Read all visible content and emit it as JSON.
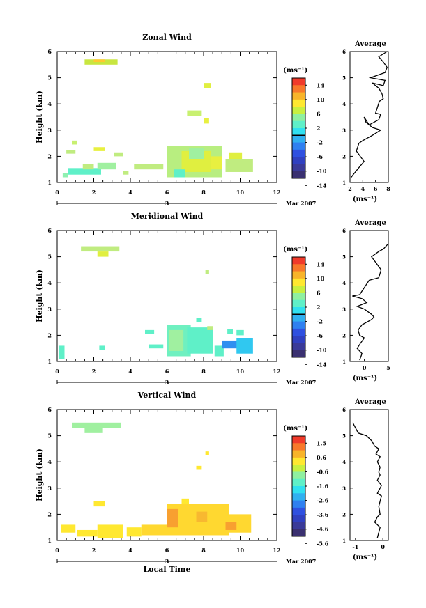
{
  "shared": {
    "y_label": "Height (km)",
    "x_label": "Local Time",
    "date_label": "Mar 2007",
    "day_label": "3",
    "cb_unit": "(ms⁻¹)",
    "avg_title": "Average",
    "avg_unit": "(ms⁻¹)"
  },
  "chart_data": [
    {
      "type": "heatmap",
      "title": "Zonal Wind",
      "xlim": [
        0,
        12
      ],
      "xticks": [
        0,
        2,
        4,
        6,
        8,
        10,
        12
      ],
      "ylim": [
        1,
        6
      ],
      "yticks": [
        1,
        2,
        3,
        4,
        5,
        6
      ],
      "colorbar": {
        "ticks": [
          "14",
          "10",
          "6",
          "2",
          "-2",
          "-6",
          "-10",
          "-14"
        ],
        "zero_line_after": 4
      },
      "cells": [
        {
          "x0": 1.5,
          "x1": 3.3,
          "y0": 5.5,
          "y1": 5.7,
          "c": "#c8e640"
        },
        {
          "x0": 2.0,
          "x1": 2.6,
          "y0": 5.6,
          "y1": 5.7,
          "c": "#ffc830"
        },
        {
          "x0": 8.0,
          "x1": 8.4,
          "y0": 4.6,
          "y1": 4.8,
          "c": "#e0ef40"
        },
        {
          "x0": 7.1,
          "x1": 7.9,
          "y0": 3.55,
          "y1": 3.75,
          "c": "#c8f070"
        },
        {
          "x0": 8.0,
          "x1": 8.3,
          "y0": 3.25,
          "y1": 3.45,
          "c": "#e8f040"
        },
        {
          "x0": 0.8,
          "x1": 1.1,
          "y0": 2.45,
          "y1": 2.6,
          "c": "#c8f070"
        },
        {
          "x0": 2.0,
          "x1": 2.6,
          "y0": 2.2,
          "y1": 2.35,
          "c": "#e8f040"
        },
        {
          "x0": 0.5,
          "x1": 1.0,
          "y0": 2.1,
          "y1": 2.25,
          "c": "#c0ec80"
        },
        {
          "x0": 3.1,
          "x1": 3.6,
          "y0": 2.0,
          "y1": 2.15,
          "c": "#c0ec80"
        },
        {
          "x0": 0.6,
          "x1": 2.4,
          "y0": 1.3,
          "y1": 1.55,
          "c": "#5ff0c8"
        },
        {
          "x0": 2.2,
          "x1": 3.2,
          "y0": 1.5,
          "y1": 1.75,
          "c": "#a0f0a0"
        },
        {
          "x0": 1.4,
          "x1": 2.0,
          "y0": 1.5,
          "y1": 1.7,
          "c": "#c0ec80"
        },
        {
          "x0": 0.3,
          "x1": 0.6,
          "y0": 1.2,
          "y1": 1.35,
          "c": "#8ff0b0"
        },
        {
          "x0": 3.6,
          "x1": 3.9,
          "y0": 1.3,
          "y1": 1.45,
          "c": "#c0ec80"
        },
        {
          "x0": 4.2,
          "x1": 5.8,
          "y0": 1.5,
          "y1": 1.7,
          "c": "#c0ec80"
        },
        {
          "x0": 6.0,
          "x1": 9.0,
          "y0": 1.2,
          "y1": 2.4,
          "c": "#b8ee80"
        },
        {
          "x0": 6.8,
          "x1": 8.4,
          "y0": 1.4,
          "y1": 2.2,
          "c": "#e0ef40"
        },
        {
          "x0": 7.2,
          "x1": 8.0,
          "y0": 1.9,
          "y1": 2.3,
          "c": "#a0f0a0"
        },
        {
          "x0": 6.4,
          "x1": 7.0,
          "y0": 1.2,
          "y1": 1.5,
          "c": "#5ff0c8"
        },
        {
          "x0": 9.2,
          "x1": 10.7,
          "y0": 1.4,
          "y1": 1.9,
          "c": "#c0ec80"
        },
        {
          "x0": 9.4,
          "x1": 10.1,
          "y0": 1.9,
          "y1": 2.15,
          "c": "#e0ef40"
        },
        {
          "x0": 8.4,
          "x1": 9.0,
          "y0": 1.5,
          "y1": 2.0,
          "c": "#e8f040"
        }
      ],
      "avg": {
        "xlim": [
          2,
          8
        ],
        "xticks": [
          "2",
          "4",
          "6",
          "8"
        ],
        "x": [
          2.2,
          2.5,
          3.0,
          3.5,
          4.2,
          3.6,
          3.0,
          3.4,
          4.0,
          5.5,
          6.8,
          5.5,
          4.5,
          4.2,
          5.0,
          6.5,
          6.8,
          6.0,
          6.6,
          7.2,
          7.0,
          6.5,
          5.5,
          7.2,
          7.5,
          5.2,
          7.5,
          7.8,
          7.2,
          6.5,
          7.8
        ],
        "y": [
          1.2,
          1.3,
          1.45,
          1.6,
          1.8,
          2.0,
          2.2,
          2.5,
          2.6,
          2.8,
          3.0,
          3.1,
          3.3,
          3.5,
          3.2,
          3.4,
          3.6,
          3.65,
          4.1,
          4.2,
          4.4,
          4.6,
          4.8,
          4.7,
          4.9,
          5.0,
          5.2,
          5.4,
          5.6,
          5.8,
          6.0
        ]
      }
    },
    {
      "type": "heatmap",
      "title": "Meridional Wind",
      "xlim": [
        0,
        12
      ],
      "xticks": [
        0,
        2,
        4,
        6,
        8,
        10,
        12
      ],
      "ylim": [
        1,
        6
      ],
      "yticks": [
        1,
        2,
        3,
        4,
        5,
        6
      ],
      "colorbar": {
        "ticks": [
          "14",
          "10",
          "6",
          "2",
          "-2",
          "-6",
          "-10",
          "-14"
        ],
        "zero_line_after": 4
      },
      "cells": [
        {
          "x0": 1.3,
          "x1": 3.4,
          "y0": 5.2,
          "y1": 5.4,
          "c": "#c0ec80"
        },
        {
          "x0": 2.2,
          "x1": 2.8,
          "y0": 5.0,
          "y1": 5.2,
          "c": "#e0ef40"
        },
        {
          "x0": 8.1,
          "x1": 8.3,
          "y0": 4.35,
          "y1": 4.5,
          "c": "#c0ec80"
        },
        {
          "x0": 0.1,
          "x1": 0.4,
          "y0": 1.1,
          "y1": 1.6,
          "c": "#5ff0c8"
        },
        {
          "x0": 2.3,
          "x1": 2.6,
          "y0": 1.45,
          "y1": 1.6,
          "c": "#5ff0c8"
        },
        {
          "x0": 4.8,
          "x1": 5.3,
          "y0": 2.05,
          "y1": 2.2,
          "c": "#5ff0c8"
        },
        {
          "x0": 5.0,
          "x1": 5.8,
          "y0": 1.5,
          "y1": 1.65,
          "c": "#5ff0c8"
        },
        {
          "x0": 6.0,
          "x1": 7.3,
          "y0": 1.2,
          "y1": 2.4,
          "c": "#6ff0c0"
        },
        {
          "x0": 6.1,
          "x1": 6.9,
          "y0": 1.4,
          "y1": 2.2,
          "c": "#a0f0a0"
        },
        {
          "x0": 7.1,
          "x1": 8.5,
          "y0": 1.3,
          "y1": 2.3,
          "c": "#5ff0c8"
        },
        {
          "x0": 7.6,
          "x1": 7.9,
          "y0": 2.5,
          "y1": 2.65,
          "c": "#5ff0c8"
        },
        {
          "x0": 8.2,
          "x1": 8.5,
          "y0": 2.2,
          "y1": 2.35,
          "c": "#c0ec80"
        },
        {
          "x0": 8.6,
          "x1": 9.1,
          "y0": 1.2,
          "y1": 1.6,
          "c": "#5ff0c8"
        },
        {
          "x0": 9.0,
          "x1": 10.0,
          "y0": 1.5,
          "y1": 1.8,
          "c": "#2f8ff0"
        },
        {
          "x0": 9.8,
          "x1": 10.7,
          "y0": 1.3,
          "y1": 1.9,
          "c": "#30c8f0"
        },
        {
          "x0": 9.3,
          "x1": 9.6,
          "y0": 2.05,
          "y1": 2.25,
          "c": "#5ff0c8"
        },
        {
          "x0": 9.8,
          "x1": 10.2,
          "y0": 2.0,
          "y1": 2.2,
          "c": "#5ff0c8"
        }
      ],
      "avg": {
        "xlim": [
          -3,
          5
        ],
        "xticks": [
          "0",
          "5"
        ],
        "x": [
          -1.0,
          -0.5,
          -1.5,
          -0.8,
          0.0,
          -1.0,
          -1.3,
          -0.5,
          0.5,
          1.5,
          2.0,
          1.5,
          0.0,
          -1.5,
          0.5,
          -0.5,
          -2.5,
          -1.0,
          1.0,
          3.0,
          3.5,
          1.5,
          3.0,
          4.0,
          5.0
        ],
        "y": [
          1.05,
          1.3,
          1.5,
          1.7,
          1.9,
          2.0,
          2.2,
          2.4,
          2.5,
          2.6,
          2.7,
          2.8,
          3.0,
          3.1,
          3.25,
          3.4,
          3.5,
          3.55,
          4.1,
          4.2,
          4.5,
          5.0,
          5.2,
          5.3,
          5.5
        ]
      }
    },
    {
      "type": "heatmap",
      "title": "Vertical Wind",
      "xlim": [
        0,
        12
      ],
      "xticks": [
        0,
        2,
        4,
        6,
        8,
        10,
        12
      ],
      "ylim": [
        1,
        6
      ],
      "yticks": [
        1,
        2,
        3,
        4,
        5,
        6
      ],
      "colorbar": {
        "ticks": [
          "1.5",
          "0.6",
          "-0.6",
          "-1.6",
          "-2.6",
          "-3.6",
          "-4.6",
          "-5.6"
        ],
        "zero_line_after": -1
      },
      "cells": [
        {
          "x0": 0.8,
          "x1": 3.5,
          "y0": 5.3,
          "y1": 5.5,
          "c": "#a0f0a0"
        },
        {
          "x0": 1.5,
          "x1": 2.5,
          "y0": 5.1,
          "y1": 5.3,
          "c": "#a0f0a0"
        },
        {
          "x0": 8.1,
          "x1": 8.3,
          "y0": 4.25,
          "y1": 4.4,
          "c": "#ffe830"
        },
        {
          "x0": 7.6,
          "x1": 7.9,
          "y0": 3.7,
          "y1": 3.85,
          "c": "#ffe830"
        },
        {
          "x0": 2.0,
          "x1": 2.6,
          "y0": 2.3,
          "y1": 2.5,
          "c": "#ffe830"
        },
        {
          "x0": 0.2,
          "x1": 1.0,
          "y0": 1.3,
          "y1": 1.6,
          "c": "#ffe830"
        },
        {
          "x0": 1.1,
          "x1": 2.2,
          "y0": 1.15,
          "y1": 1.4,
          "c": "#ffe830"
        },
        {
          "x0": 2.2,
          "x1": 3.6,
          "y0": 1.1,
          "y1": 1.6,
          "c": "#ffe830"
        },
        {
          "x0": 3.8,
          "x1": 4.6,
          "y0": 1.15,
          "y1": 1.5,
          "c": "#ffe830"
        },
        {
          "x0": 4.6,
          "x1": 6.0,
          "y0": 1.2,
          "y1": 1.6,
          "c": "#ffd830"
        },
        {
          "x0": 6.0,
          "x1": 9.4,
          "y0": 1.2,
          "y1": 2.4,
          "c": "#ffd830"
        },
        {
          "x0": 6.0,
          "x1": 6.6,
          "y0": 1.5,
          "y1": 2.2,
          "c": "#f8a030"
        },
        {
          "x0": 7.6,
          "x1": 8.2,
          "y0": 1.7,
          "y1": 2.1,
          "c": "#f8b830"
        },
        {
          "x0": 9.0,
          "x1": 10.6,
          "y0": 1.3,
          "y1": 2.0,
          "c": "#ffd830"
        },
        {
          "x0": 9.2,
          "x1": 9.8,
          "y0": 1.4,
          "y1": 1.7,
          "c": "#f8a030"
        },
        {
          "x0": 6.8,
          "x1": 7.2,
          "y0": 2.4,
          "y1": 2.6,
          "c": "#ffe830"
        }
      ],
      "avg": {
        "xlim": [
          -1.2,
          0.2
        ],
        "xticks": [
          "-1",
          "0"
        ],
        "x": [
          -0.2,
          -0.15,
          -0.1,
          -0.3,
          -0.2,
          -0.1,
          -0.15,
          -0.1,
          -0.05,
          -0.2,
          -0.1,
          -0.05,
          -0.2,
          -0.1,
          -0.15,
          -0.1,
          -0.2,
          -0.1,
          -0.25,
          -0.15,
          -0.3,
          -0.4,
          -0.6,
          -0.9,
          -1.0,
          -1.1
        ],
        "y": [
          1.1,
          1.3,
          1.5,
          1.7,
          1.9,
          2.0,
          2.3,
          2.5,
          2.7,
          2.8,
          3.0,
          3.1,
          3.3,
          3.5,
          3.6,
          3.8,
          4.0,
          4.2,
          4.3,
          4.5,
          4.6,
          4.8,
          5.0,
          5.1,
          5.3,
          5.5
        ]
      }
    }
  ]
}
